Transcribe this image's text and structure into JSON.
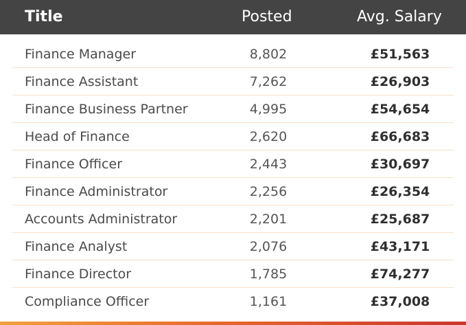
{
  "header": {
    "title": "Title",
    "posted": "Posted",
    "salary": "Avg. Salary"
  },
  "rows": [
    {
      "title": "Finance Manager",
      "posted": "8,802",
      "salary": "£51,563"
    },
    {
      "title": "Finance Assistant",
      "posted": "7,262",
      "salary": "£26,903"
    },
    {
      "title": "Finance Business Partner",
      "posted": "4,995",
      "salary": "£54,654"
    },
    {
      "title": "Head of Finance",
      "posted": "2,620",
      "salary": "£66,683"
    },
    {
      "title": "Finance Officer",
      "posted": "2,443",
      "salary": "£30,697"
    },
    {
      "title": "Finance Administrator",
      "posted": "2,256",
      "salary": "£26,354"
    },
    {
      "title": "Accounts Administrator",
      "posted": "2,201",
      "salary": "£25,687"
    },
    {
      "title": "Finance Analyst",
      "posted": "2,076",
      "salary": "£43,171"
    },
    {
      "title": "Finance Director",
      "posted": "1,785",
      "salary": "£74,277"
    },
    {
      "title": "Compliance Officer",
      "posted": "1,161",
      "salary": "£37,008"
    }
  ],
  "colors": {
    "header_bg": "#444444",
    "header_text": "#ffffff",
    "row_divider": "#f7e1c8",
    "accent_gradient": [
      "#f2a03c",
      "#e86a2c",
      "#c8372e"
    ]
  }
}
